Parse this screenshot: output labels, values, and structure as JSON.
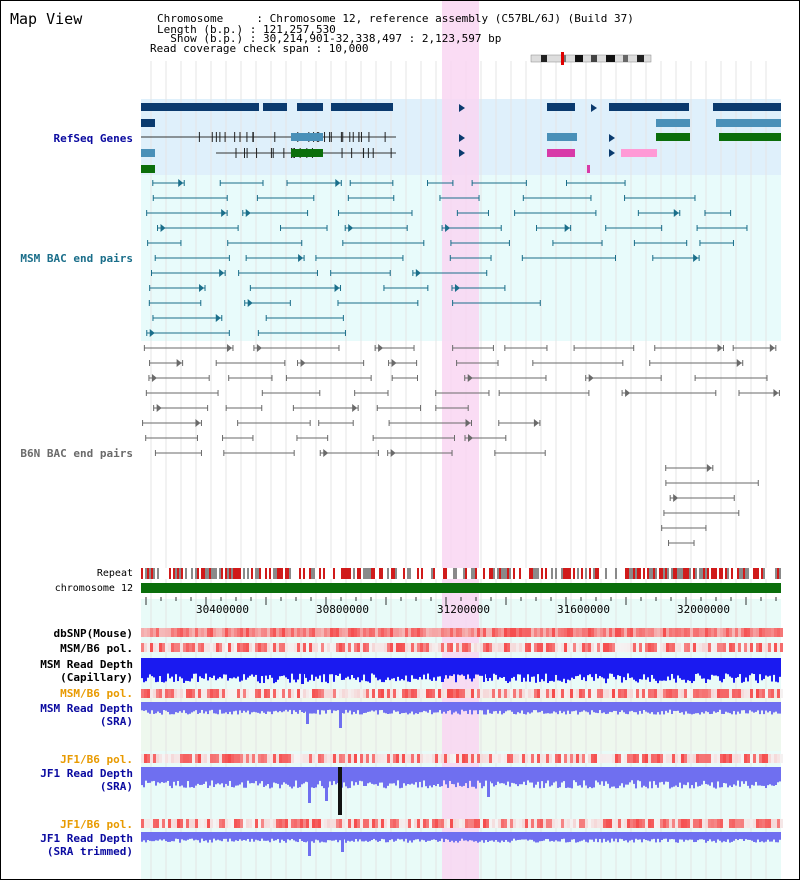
{
  "title": "Map View",
  "info": {
    "chrom_row": "Chromosome     : Chromosome 12, reference assembly (C57BL/6J) (Build 37)",
    "length_row": "Length (b.p.) : 121,257,530",
    "show_row": "  Show (b.p.) : 30,214,901-32,338,497 : 2,123,597 bp",
    "span_row": "Read coverage check span : 10,000"
  },
  "track_labels": {
    "refseq": "RefSeq Genes",
    "msm_bac": "MSM BAC end pairs",
    "b6n_bac": "B6N BAC end pairs",
    "repeat": "Repeat",
    "chromosome": "chromosome 12",
    "dbsnp": "dbSNP(Mouse)",
    "msm_pol_1": "MSM/B6 pol.",
    "msm_depth_cap": "MSM Read Depth\n(Capillary)",
    "msm_pol_2": "MSM/B6 pol.",
    "msm_depth_sra": "MSM Read Depth\n(SRA)",
    "jf1_pol_1": "JF1/B6 pol.",
    "jf1_depth_sra": "JF1 Read Depth\n(SRA)",
    "jf1_pol_2": "JF1/B6 pol.",
    "jf1_depth_trim": "JF1 Read Depth\n(SRA trimmed)"
  },
  "axis_ticks": [
    "30400000",
    "30800000",
    "31200000",
    "31600000",
    "32000000"
  ],
  "colors": {
    "refseq_dark": "#0a3a6e",
    "refseq_mid": "#4a90b8",
    "refseq_green": "#0b6e0b",
    "msm_bac": "#1a6e8a",
    "b6n_bac": "#6a6a6a",
    "highlight": "#f9d6f2",
    "chromosome_bar": "#0b6e0b",
    "snp_red": "#e0403a",
    "capillary_blue": "#1a1af0",
    "sra_blue": "#6f6ff0",
    "label_blue": "#0a0aa0",
    "label_teal": "#1a6e8a",
    "label_orange": "#e89a00"
  }
}
